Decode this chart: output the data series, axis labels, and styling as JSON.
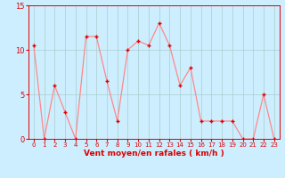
{
  "x_values": [
    0,
    1,
    2,
    3,
    4,
    5,
    6,
    7,
    8,
    9,
    10,
    11,
    12,
    13,
    14,
    15,
    16,
    17,
    18,
    19,
    20,
    21,
    22,
    23
  ],
  "y_values": [
    10.5,
    0,
    6,
    3,
    0,
    11.5,
    11.5,
    6.5,
    2,
    10,
    11,
    10.5,
    13,
    10.5,
    6,
    8,
    2,
    2,
    2,
    2,
    0,
    0,
    5,
    0
  ],
  "line_color": "#ff8888",
  "marker_color": "#dd0000",
  "bg_color": "#cceeff",
  "grid_color": "#aacccc",
  "axis_color": "#dd0000",
  "tick_color": "#dd0000",
  "xlabel": "Vent moyen/en rafales ( km/h )",
  "ylim": [
    0,
    15
  ],
  "xlim": [
    -0.5,
    23.5
  ],
  "yticks": [
    0,
    5,
    10,
    15
  ],
  "xticks": [
    0,
    1,
    2,
    3,
    4,
    5,
    6,
    7,
    8,
    9,
    10,
    11,
    12,
    13,
    14,
    15,
    16,
    17,
    18,
    19,
    20,
    21,
    22,
    23
  ],
  "xlabel_fontsize": 6.5,
  "tick_fontsize_x": 5.0,
  "tick_fontsize_y": 6.0
}
